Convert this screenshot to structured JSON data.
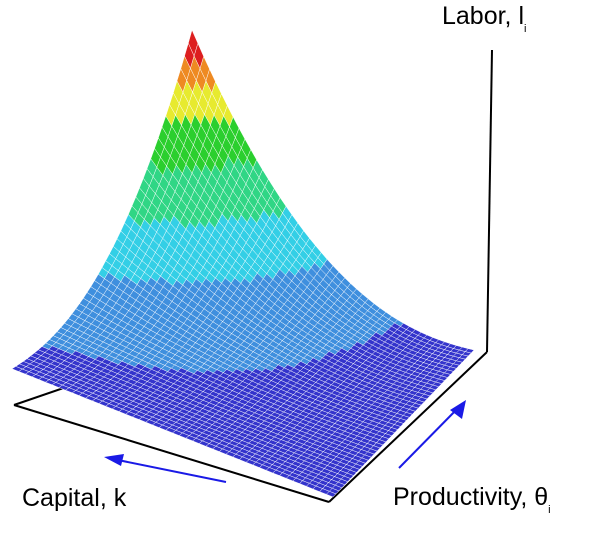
{
  "chart_data": {
    "type": "surface",
    "axes": {
      "z": {
        "label": "Labor, l",
        "subscript": "i"
      },
      "x": {
        "label": "Capital, k",
        "subscript": ""
      },
      "y": {
        "label": "Productivity, θ",
        "subscript": "i"
      }
    },
    "ticks": "none",
    "grid": false,
    "legend": "none",
    "surface": {
      "description_shape": "labor rises steeply as capital falls and productivity rises; peak at low capital, high productivity corner",
      "grid_resolution": [
        48,
        48
      ],
      "z_at_corners": {
        "low_capital_high_productivity": 1.0,
        "high_capital_high_productivity": 0.16,
        "low_capital_low_productivity": 0.0,
        "high_capital_low_productivity": 0.0
      },
      "color_bands": [
        {
          "z_from": 0.0,
          "z_to": 0.075,
          "color": "#3434cc"
        },
        {
          "z_from": 0.075,
          "z_to": 0.26,
          "color": "#3f8fde"
        },
        {
          "z_from": 0.26,
          "z_to": 0.42,
          "color": "#33cfe6"
        },
        {
          "z_from": 0.42,
          "z_to": 0.58,
          "color": "#30d685"
        },
        {
          "z_from": 0.58,
          "z_to": 0.71,
          "color": "#2bcf2e"
        },
        {
          "z_from": 0.71,
          "z_to": 0.81,
          "color": "#e7ea2f"
        },
        {
          "z_from": 0.81,
          "z_to": 0.9,
          "color": "#ee8a22"
        },
        {
          "z_from": 0.9,
          "z_to": 1.01,
          "color": "#dd1f1f"
        }
      ],
      "mesh_color": "#ffffff"
    },
    "arrows": [
      {
        "axis": "capital",
        "direction": "increasing-left",
        "color": "#1a1ae6"
      },
      {
        "axis": "productivity",
        "direction": "increasing-up-right",
        "color": "#1a1ae6"
      }
    ]
  }
}
